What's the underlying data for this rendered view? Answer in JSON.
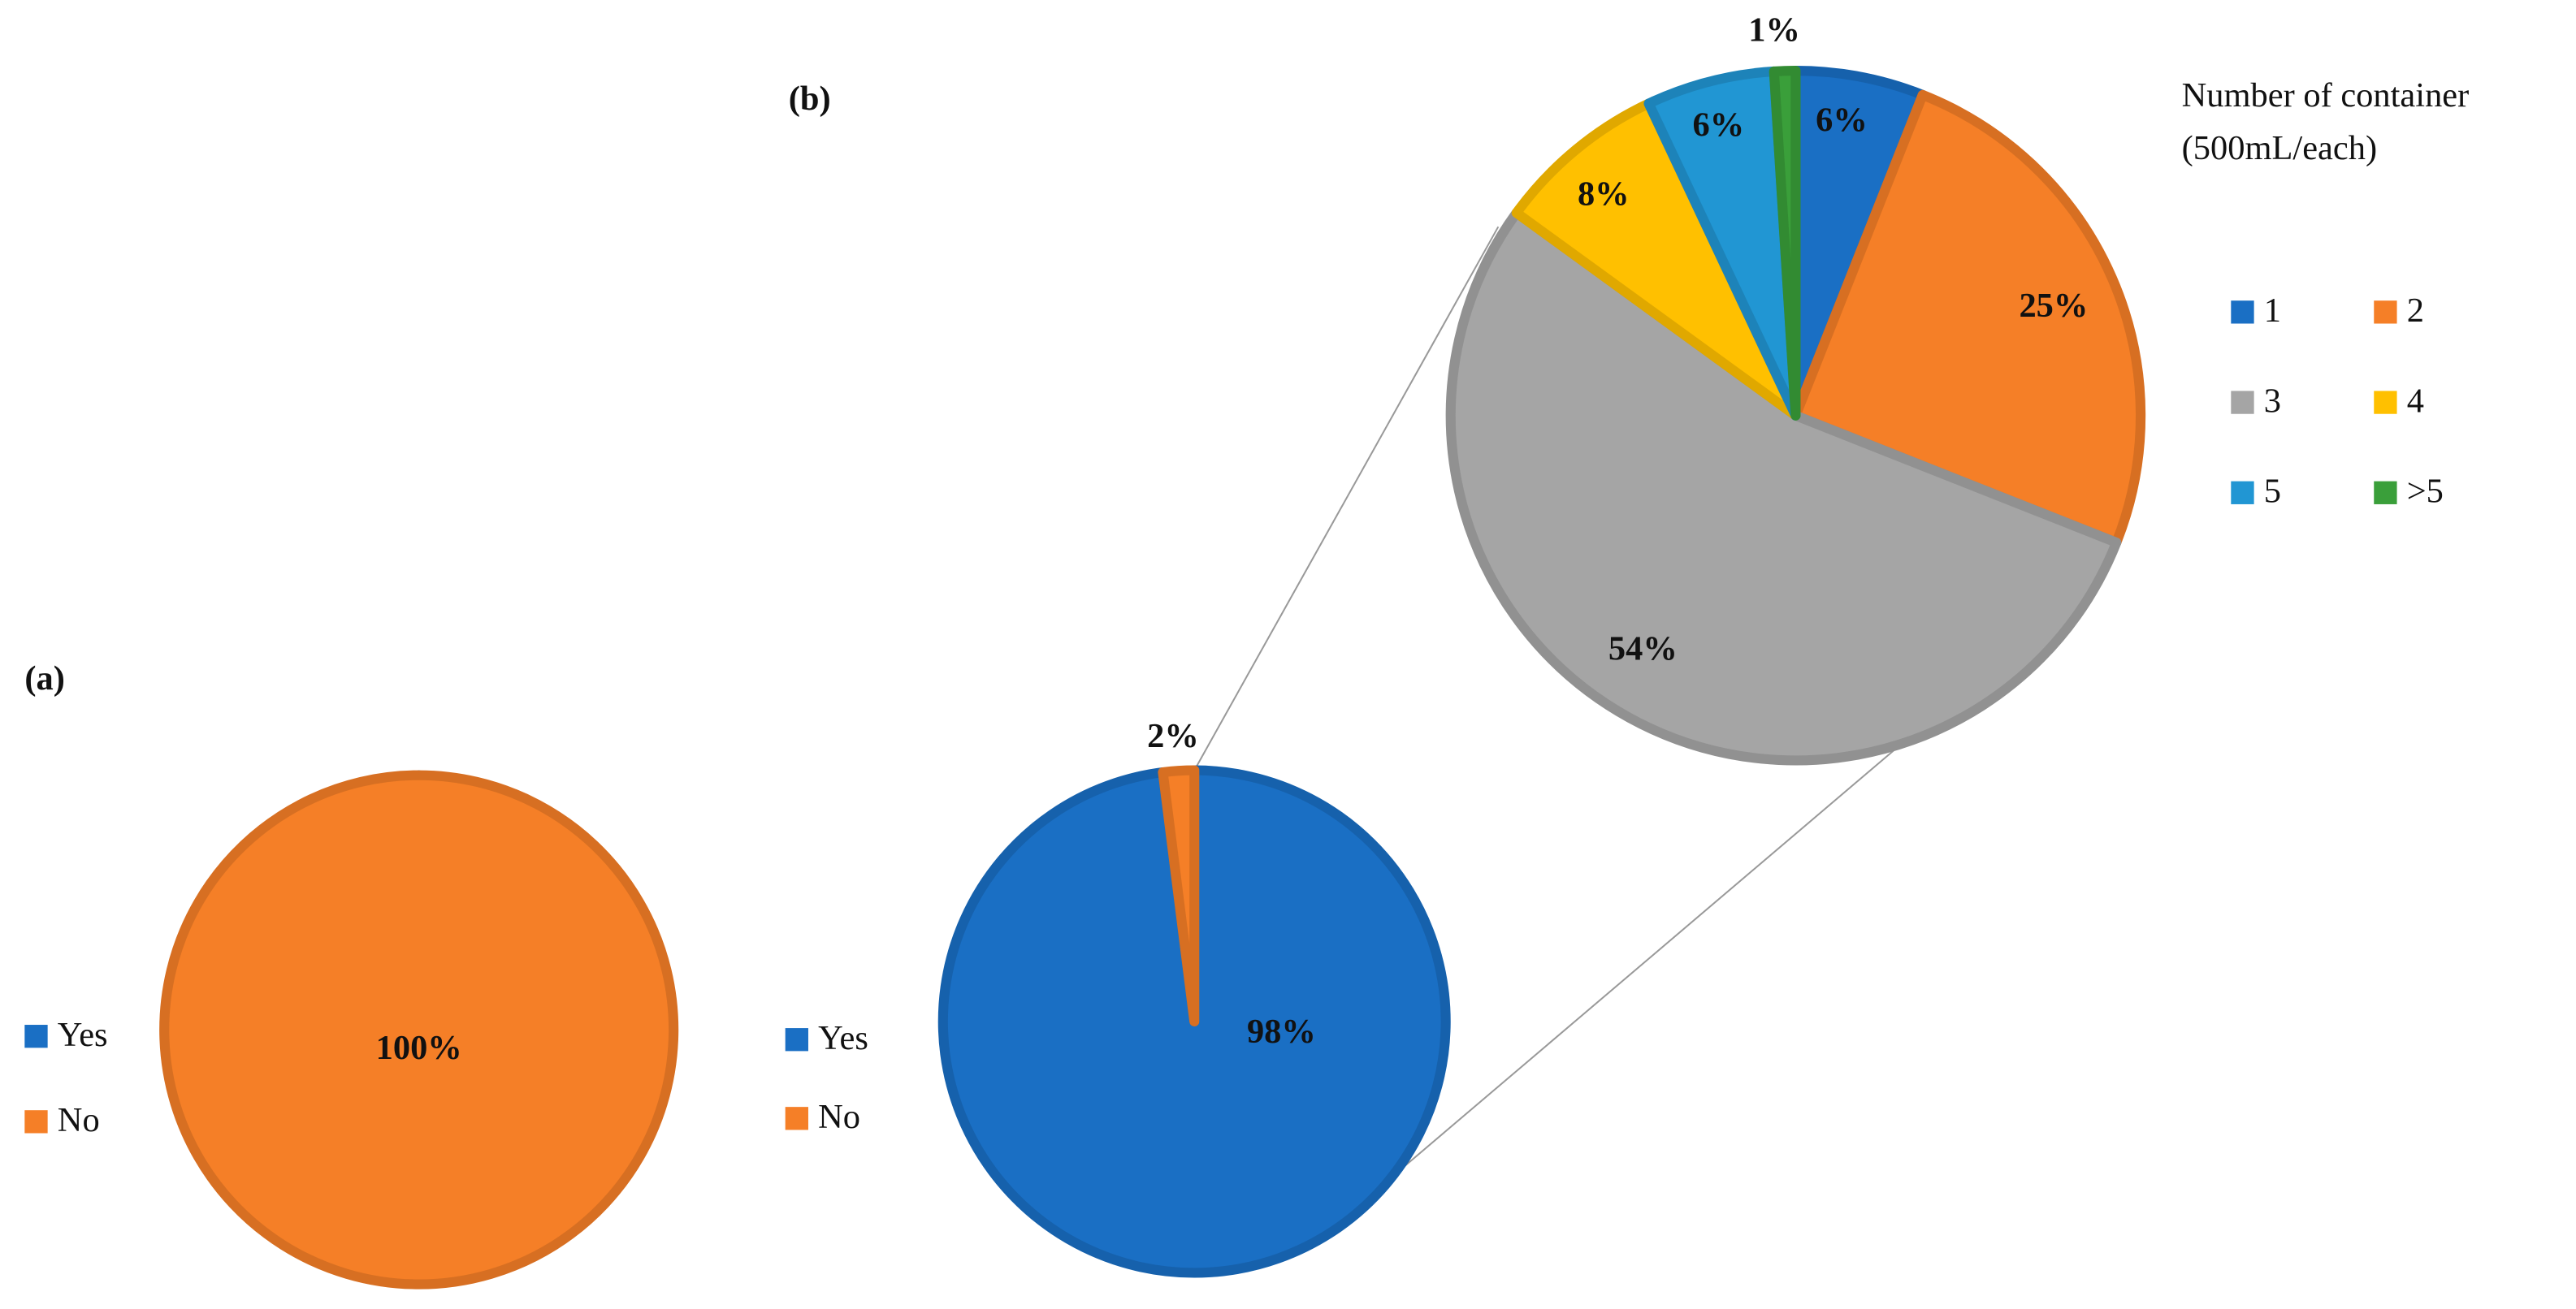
{
  "chart_data": [
    {
      "type": "pie",
      "label": "(a)",
      "categories": [
        "Yes",
        "No"
      ],
      "values": [
        0,
        100
      ],
      "value_labels": [
        null,
        "100%"
      ],
      "colors": [
        "#1a6fc4",
        "#f57f27"
      ]
    },
    {
      "type": "pie",
      "label": "(b)",
      "categories": [
        "Yes",
        "No"
      ],
      "values": [
        98,
        2
      ],
      "value_labels": [
        "98%",
        "2%"
      ],
      "colors": [
        "#1a6fc4",
        "#f57f27"
      ]
    },
    {
      "type": "pie",
      "legend_title": [
        "Number of container",
        "(500mL/each)"
      ],
      "categories": [
        "1",
        "2",
        "3",
        "4",
        "5",
        ">5"
      ],
      "values": [
        6,
        25,
        54,
        8,
        6,
        1
      ],
      "value_labels": [
        "6%",
        "25%",
        "54%",
        "8%",
        "6%",
        "1%"
      ],
      "colors": [
        "#1a6fc4",
        "#f57f27",
        "#a5a5a5",
        "#ffc000",
        "#2196d3",
        "#3a9f3a"
      ]
    }
  ]
}
